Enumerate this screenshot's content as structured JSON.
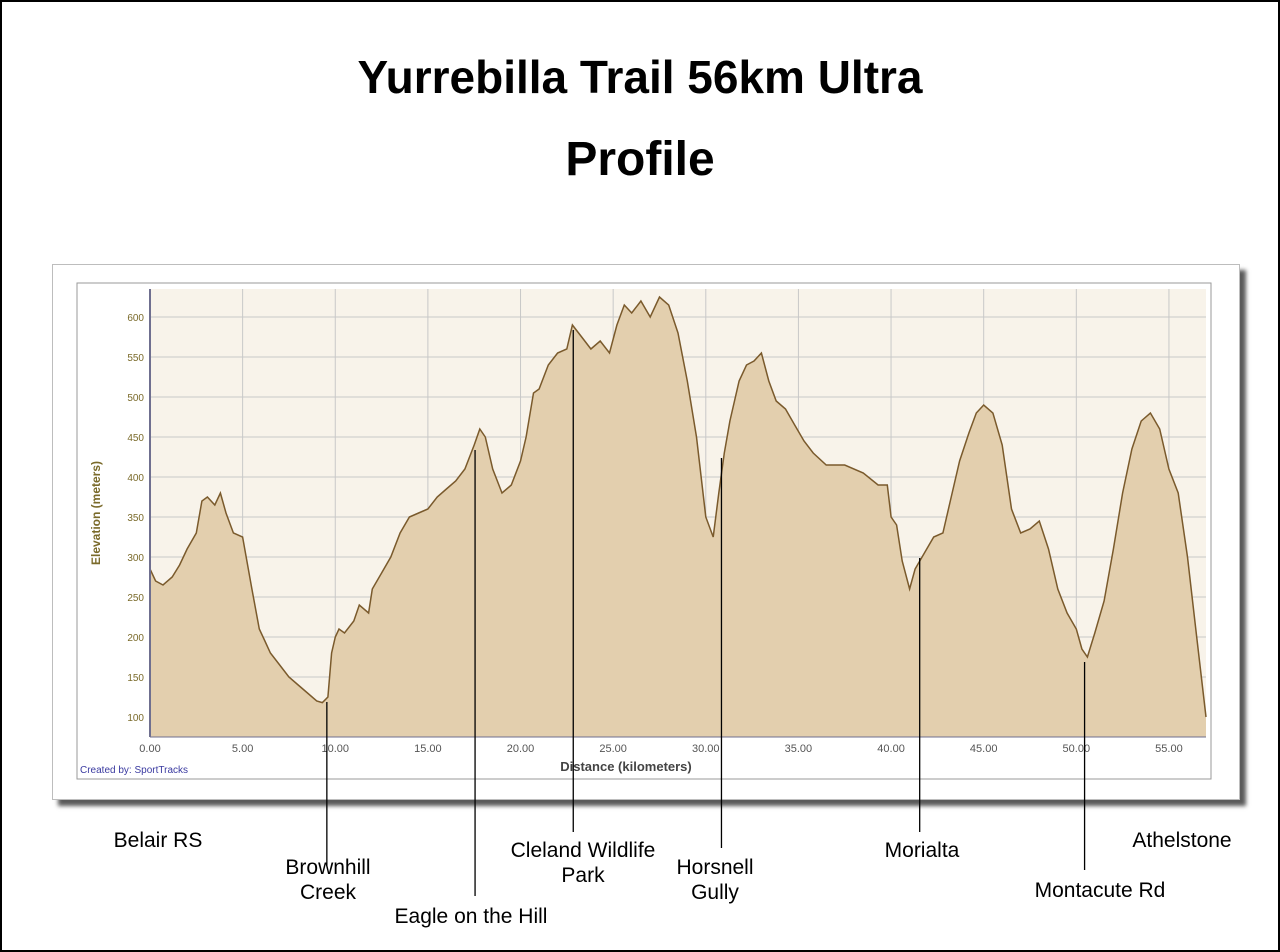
{
  "page": {
    "title_line1": "Yurrebilla Trail 56km Ultra",
    "title_line2": "Profile"
  },
  "chart_data": {
    "type": "area",
    "xlabel": "Distance (kilometers)",
    "ylabel": "Elevation (meters)",
    "credit": "Created by: SportTracks",
    "xlim": [
      0,
      57
    ],
    "ylim": [
      75,
      635
    ],
    "x_ticks": [
      "0.00",
      "5.00",
      "10.00",
      "15.00",
      "20.00",
      "25.00",
      "30.00",
      "35.00",
      "40.00",
      "45.00",
      "50.00",
      "55.00"
    ],
    "y_ticks": [
      "100",
      "150",
      "200",
      "250",
      "300",
      "350",
      "400",
      "450",
      "500",
      "550",
      "600"
    ],
    "grid": true,
    "colors": {
      "fill": "#e3cfae",
      "line": "#7a5a2c",
      "grid": "#c8c8c8",
      "plot_bg": "#f8f3ea"
    },
    "series": [
      {
        "x": [
          0,
          0.3,
          0.7,
          1.2,
          1.6,
          2.0,
          2.5,
          2.8,
          3.1,
          3.5,
          3.8,
          4.1,
          4.5,
          5.0,
          5.5,
          5.9,
          6.2,
          6.5,
          7,
          7.5,
          8,
          8.5,
          9,
          9.3,
          9.6,
          9.8,
          10.0,
          10.2,
          10.5,
          11,
          11.3,
          11.8,
          12,
          12.5,
          13,
          13.5,
          14,
          14.5,
          15,
          15.5,
          16,
          16.5,
          17.0,
          17.5,
          17.8,
          18.1,
          18.5,
          19,
          19.5,
          20.0,
          20.3,
          20.7,
          21.0,
          21.5,
          22.0,
          22.5,
          22.8,
          23.3,
          23.8,
          24.3,
          24.8,
          25.2,
          25.6,
          26.0,
          26.5,
          27.0,
          27.5,
          28.0,
          28.5,
          29.0,
          29.5,
          30.0,
          30.4,
          30.7,
          31.0,
          31.3,
          31.8,
          32.2,
          32.6,
          33.0,
          33.4,
          33.8,
          34.3,
          34.8,
          35.3,
          35.8,
          36.5,
          37.5,
          38.5,
          39.3,
          39.8,
          40.0,
          40.3,
          40.6,
          41.0,
          41.3,
          41.8,
          42.3,
          42.8,
          43.2,
          43.7,
          44.2,
          44.6,
          45.0,
          45.5,
          46.0,
          46.5,
          47.0,
          47.5,
          48.0,
          48.5,
          49.0,
          49.5,
          50.0,
          50.3,
          50.6,
          51.0,
          51.5,
          52.0,
          52.5,
          53.0,
          53.5,
          54.0,
          54.5,
          55.0,
          55.5,
          56.0,
          56.5,
          57.0
        ],
        "y": [
          285,
          270,
          265,
          275,
          290,
          310,
          330,
          370,
          375,
          365,
          380,
          355,
          330,
          325,
          260,
          210,
          195,
          180,
          165,
          150,
          140,
          130,
          120,
          118,
          125,
          180,
          200,
          210,
          205,
          220,
          240,
          230,
          260,
          280,
          300,
          330,
          350,
          355,
          360,
          375,
          385,
          395,
          410,
          440,
          460,
          450,
          410,
          380,
          390,
          420,
          450,
          505,
          510,
          540,
          555,
          560,
          590,
          575,
          560,
          570,
          555,
          590,
          615,
          605,
          620,
          600,
          625,
          615,
          580,
          520,
          450,
          350,
          325,
          380,
          430,
          470,
          520,
          540,
          545,
          555,
          520,
          495,
          485,
          465,
          445,
          430,
          415,
          415,
          405,
          390,
          390,
          350,
          340,
          295,
          260,
          285,
          305,
          325,
          330,
          370,
          420,
          455,
          480,
          490,
          480,
          440,
          360,
          330,
          335,
          345,
          310,
          260,
          230,
          210,
          185,
          175,
          205,
          245,
          310,
          380,
          435,
          470,
          480,
          460,
          410,
          380,
          300,
          200,
          100
        ]
      }
    ],
    "annotations": [
      {
        "text": "Belair RS",
        "x": null
      },
      {
        "text": "Brownhill\nCreek",
        "x": 9.6
      },
      {
        "text": "Eagle on the Hill",
        "x": 17.6
      },
      {
        "text": "Cleland Wildlife\nPark",
        "x": 22.9
      },
      {
        "text": "Horsnell\nGully",
        "x": 30.9
      },
      {
        "text": "Morialta",
        "x": 41.6
      },
      {
        "text": "Montacute Rd",
        "x": 50.5
      },
      {
        "text": "Athelstone",
        "x": null
      }
    ]
  }
}
